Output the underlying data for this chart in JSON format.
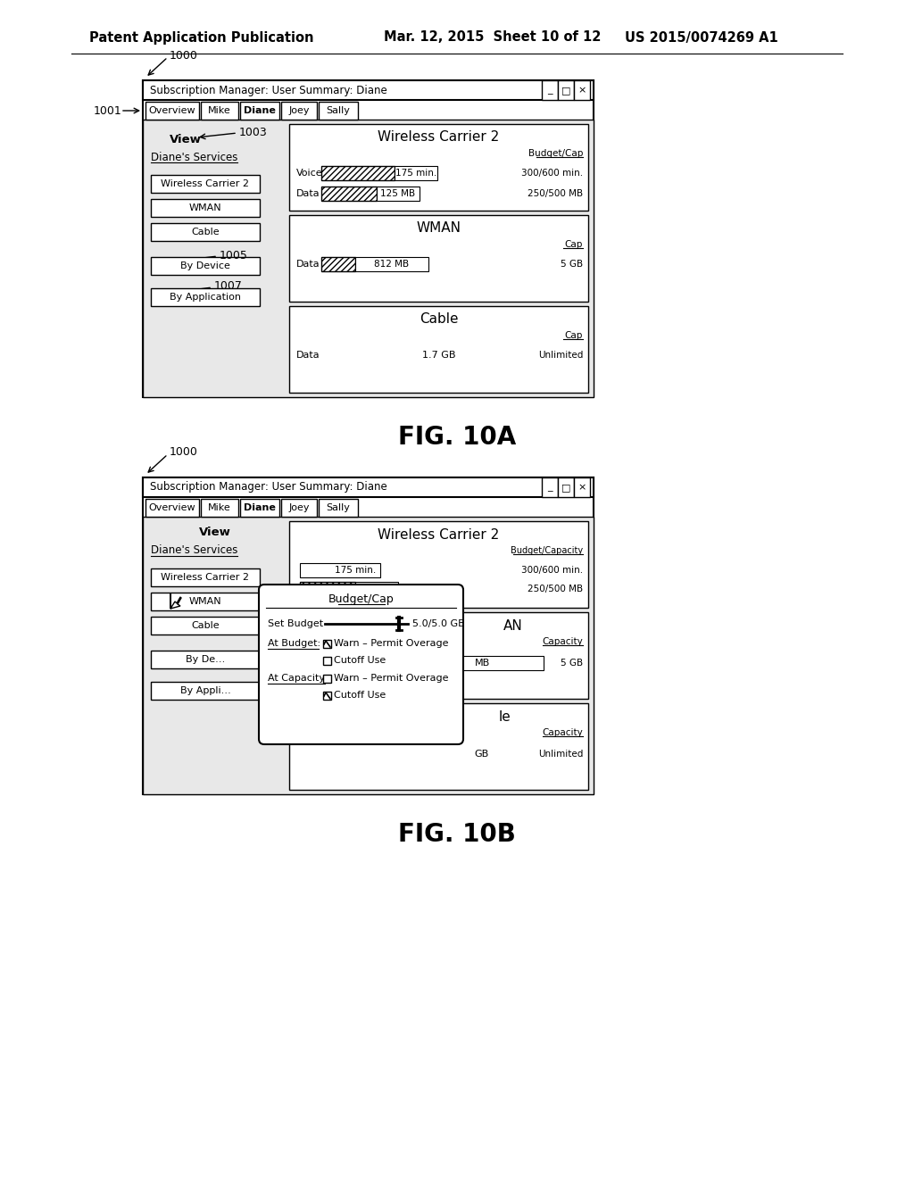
{
  "bg_color": "#ffffff",
  "header_text_left": "Patent Application Publication",
  "header_text_mid": "Mar. 12, 2015  Sheet 10 of 12",
  "header_text_right": "US 2015/0074269 A1",
  "fig10a_label": "FIG. 10A",
  "fig10b_label": "FIG. 10B",
  "title_bar_text": "Subscription Manager: User Summary: Diane",
  "tabs": [
    "Overview",
    "Mike",
    "Diane",
    "Joey",
    "Sally"
  ],
  "label_1000": "1000",
  "label_1001": "1001",
  "label_1003": "1003",
  "label_1005": "1005",
  "label_1007": "1007",
  "view_label": "View",
  "dianes_services_label": "Diane's Services",
  "services": [
    "Wireless Carrier 2",
    "WMAN",
    "Cable"
  ],
  "bottom_buttons": [
    "By Device",
    "By Application"
  ],
  "wc2_title": "Wireless Carrier 2",
  "wc2_budget_cap": "Budget/Cap",
  "wc2_voice_label": "Voice",
  "wc2_voice_value": "175 min.",
  "wc2_voice_budget": "300/600 min.",
  "wc2_data_label": "Data",
  "wc2_data_value": "125 MB",
  "wc2_data_budget": "250/500 MB",
  "wman_title": "WMAN",
  "wman_cap": "Cap",
  "wman_data_label": "Data",
  "wman_data_value": "812 MB",
  "wman_cap_value": "5 GB",
  "cable_title": "Cable",
  "cable_cap": "Cap",
  "cable_data_label": "Data",
  "cable_data_value": "1.7 GB",
  "cable_cap_value": "Unlimited",
  "popup_title": "Budget/Cap",
  "popup_set_budget": "Set Budget",
  "popup_slider_value": "5.0/5.0 GB",
  "popup_at_budget": "At Budget:",
  "popup_at_capacity": "At Capacity:",
  "popup_warn1": "Warn – Permit Overage",
  "popup_cutoff1": "Cutoff Use",
  "popup_warn2": "Warn – Permit Overage",
  "popup_cutoff2": "Cutoff Use",
  "budget_capacity_label": "Budget/Capacity",
  "capacity_label": "Capacity"
}
